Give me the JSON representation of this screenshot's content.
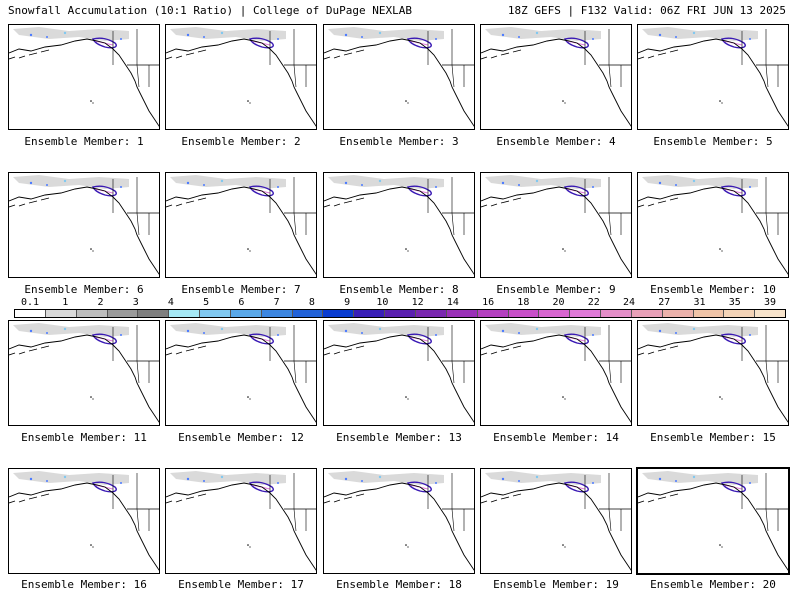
{
  "header": {
    "left": "Snowfall Accumulation (10:1 Ratio) | College of DuPage NEXLAB",
    "right": "18Z GEFS | F132 Valid: 06Z FRI JUN 13 2025"
  },
  "panels": [
    {
      "label": "Ensemble Member: 1"
    },
    {
      "label": "Ensemble Member: 2"
    },
    {
      "label": "Ensemble Member: 3"
    },
    {
      "label": "Ensemble Member: 4"
    },
    {
      "label": "Ensemble Member: 5"
    },
    {
      "label": "Ensemble Member: 6"
    },
    {
      "label": "Ensemble Member: 7"
    },
    {
      "label": "Ensemble Member: 8"
    },
    {
      "label": "Ensemble Member: 9"
    },
    {
      "label": "Ensemble Member: 10"
    },
    {
      "label": "Ensemble Member: 11"
    },
    {
      "label": "Ensemble Member: 12"
    },
    {
      "label": "Ensemble Member: 13"
    },
    {
      "label": "Ensemble Member: 14"
    },
    {
      "label": "Ensemble Member: 15"
    },
    {
      "label": "Ensemble Member: 16"
    },
    {
      "label": "Ensemble Member: 17"
    },
    {
      "label": "Ensemble Member: 18"
    },
    {
      "label": "Ensemble Member: 19"
    },
    {
      "label": "Ensemble Member: 20"
    }
  ],
  "colorbar": {
    "labels": [
      "0.1",
      "1",
      "2",
      "3",
      "4",
      "5",
      "6",
      "7",
      "8",
      "9",
      "10",
      "12",
      "14",
      "16",
      "18",
      "20",
      "22",
      "24",
      "27",
      "31",
      "35",
      "39"
    ],
    "colors": [
      "#ffffff",
      "#d9d9d9",
      "#bdbdbd",
      "#9a9a9a",
      "#7f7f7f",
      "#a6e8f5",
      "#80c8f0",
      "#5aa8e8",
      "#3c86e0",
      "#2262d8",
      "#0a3cd0",
      "#3a20b8",
      "#5a20b0",
      "#7a28b0",
      "#9a30b8",
      "#b440c0",
      "#c850c8",
      "#d866d0",
      "#e07ad8",
      "#e48ec8",
      "#e8a0b8",
      "#ecb2ac",
      "#f0c4a8",
      "#f4d4b8",
      "#f8e4cc"
    ]
  },
  "legend_colors": {
    "land_outline": "#000000",
    "light_snow": "#d0d0d0",
    "moderate_snow": "#4b7bff",
    "heavy_snow": "#3a1ab4",
    "ocean_background": "#ffffff"
  }
}
